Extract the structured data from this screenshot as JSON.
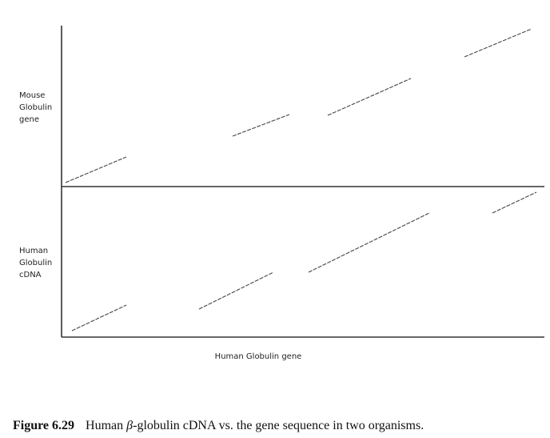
{
  "labels": {
    "upper_y": [
      "Mouse",
      "Globulin",
      "gene"
    ],
    "lower_y": [
      "Human",
      "Globulin",
      "cDNA"
    ],
    "x": "Human Globulin gene"
  },
  "caption": {
    "number": "Figure 6.29",
    "text_before": "Human ",
    "symbol": "β",
    "text_after": "-globulin cDNA vs. the gene sequence in two organisms."
  }
}
